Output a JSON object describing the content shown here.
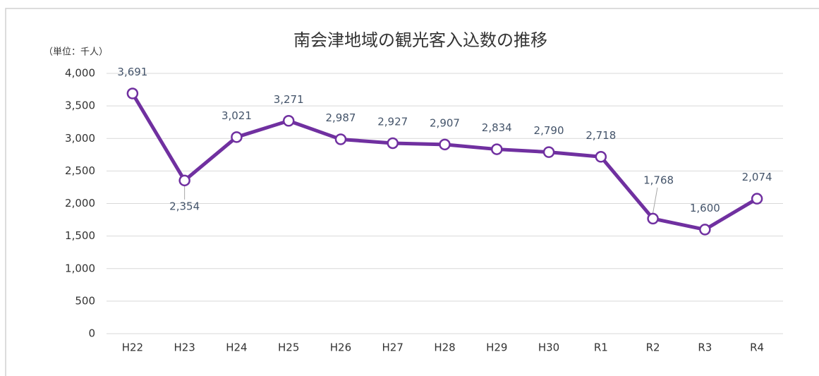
{
  "chart_data": {
    "type": "line",
    "title": "南会津地域の観光客入込数の推移",
    "unit_label": "（単位：千人）",
    "categories": [
      "H22",
      "H23",
      "H24",
      "H25",
      "H26",
      "H27",
      "H28",
      "H29",
      "H30",
      "R1",
      "R2",
      "R3",
      "R4"
    ],
    "series": [
      {
        "name": "観光客入込数",
        "color": "#7030a0",
        "values": [
          3691,
          2354,
          3021,
          3271,
          2987,
          2927,
          2907,
          2834,
          2790,
          2718,
          1768,
          1600,
          2074
        ],
        "value_labels": [
          "3,691",
          "2,354",
          "3,021",
          "3,271",
          "2,987",
          "2,927",
          "2,907",
          "2,834",
          "2,790",
          "2,718",
          "1,768",
          "1,600",
          "2,074"
        ]
      }
    ],
    "ylim": [
      0,
      4000
    ],
    "yticks": [
      0,
      500,
      {
        "value": 1000,
        "label": "1,000"
      },
      {
        "value": 1500,
        "label": "1,500"
      },
      {
        "value": 2000,
        "label": "2,000"
      },
      {
        "value": 2500,
        "label": "2,500"
      },
      {
        "value": 3000,
        "label": "3,000"
      },
      {
        "value": 3500,
        "label": "3,500"
      },
      {
        "value": 4000,
        "label": "4,000"
      }
    ],
    "grid": true
  }
}
